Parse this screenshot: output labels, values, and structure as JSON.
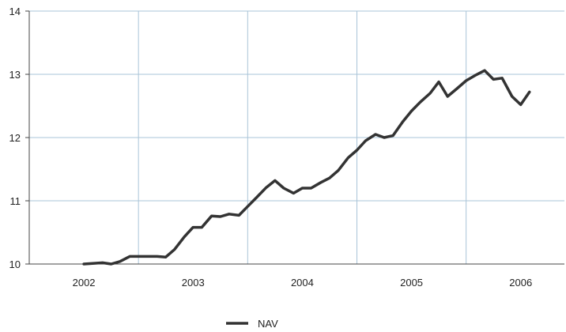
{
  "chart_data": {
    "type": "line",
    "title": "",
    "xlabel": "",
    "ylabel": "",
    "xlim": [
      2001.5,
      2006.4
    ],
    "ylim": [
      10,
      14
    ],
    "x_ticks": [
      2002,
      2003,
      2004,
      2005,
      2006
    ],
    "x_tick_labels": [
      "2002",
      "2003",
      "2004",
      "2005",
      "2006"
    ],
    "x_gridlines": [
      2002.5,
      2003.5,
      2004.5,
      2005.5
    ],
    "y_ticks": [
      10,
      11,
      12,
      13,
      14
    ],
    "y_tick_labels": [
      "10",
      "11",
      "12",
      "13",
      "14"
    ],
    "grid": true,
    "legend": {
      "position": "bottom-center"
    },
    "colors": {
      "grid": "#a9c4d8",
      "axis": "#444444",
      "line": "#333333"
    },
    "series": [
      {
        "name": "NAV",
        "x": [
          2002.0,
          2002.08,
          2002.17,
          2002.25,
          2002.33,
          2002.42,
          2002.5,
          2002.58,
          2002.67,
          2002.75,
          2002.83,
          2002.92,
          2003.0,
          2003.08,
          2003.17,
          2003.25,
          2003.33,
          2003.42,
          2003.5,
          2003.58,
          2003.67,
          2003.75,
          2003.83,
          2003.92,
          2004.0,
          2004.08,
          2004.17,
          2004.25,
          2004.33,
          2004.42,
          2004.5,
          2004.58,
          2004.67,
          2004.75,
          2004.83,
          2004.92,
          2005.0,
          2005.08,
          2005.17,
          2005.25,
          2005.33,
          2005.42,
          2005.5,
          2005.58,
          2005.67,
          2005.75,
          2005.83,
          2005.92,
          2006.0,
          2006.08
        ],
        "values": [
          10.0,
          10.01,
          10.02,
          10.0,
          10.04,
          10.12,
          10.12,
          10.12,
          10.12,
          10.11,
          10.23,
          10.43,
          10.58,
          10.58,
          10.76,
          10.75,
          10.79,
          10.77,
          10.91,
          11.05,
          11.21,
          11.32,
          11.2,
          11.12,
          11.2,
          11.2,
          11.29,
          11.36,
          11.48,
          11.68,
          11.8,
          11.95,
          12.05,
          12.0,
          12.03,
          12.25,
          12.42,
          12.56,
          12.7,
          12.88,
          12.65,
          12.78,
          12.9,
          12.98,
          13.06,
          12.92,
          12.94,
          12.65,
          12.52,
          12.72
        ]
      }
    ]
  }
}
